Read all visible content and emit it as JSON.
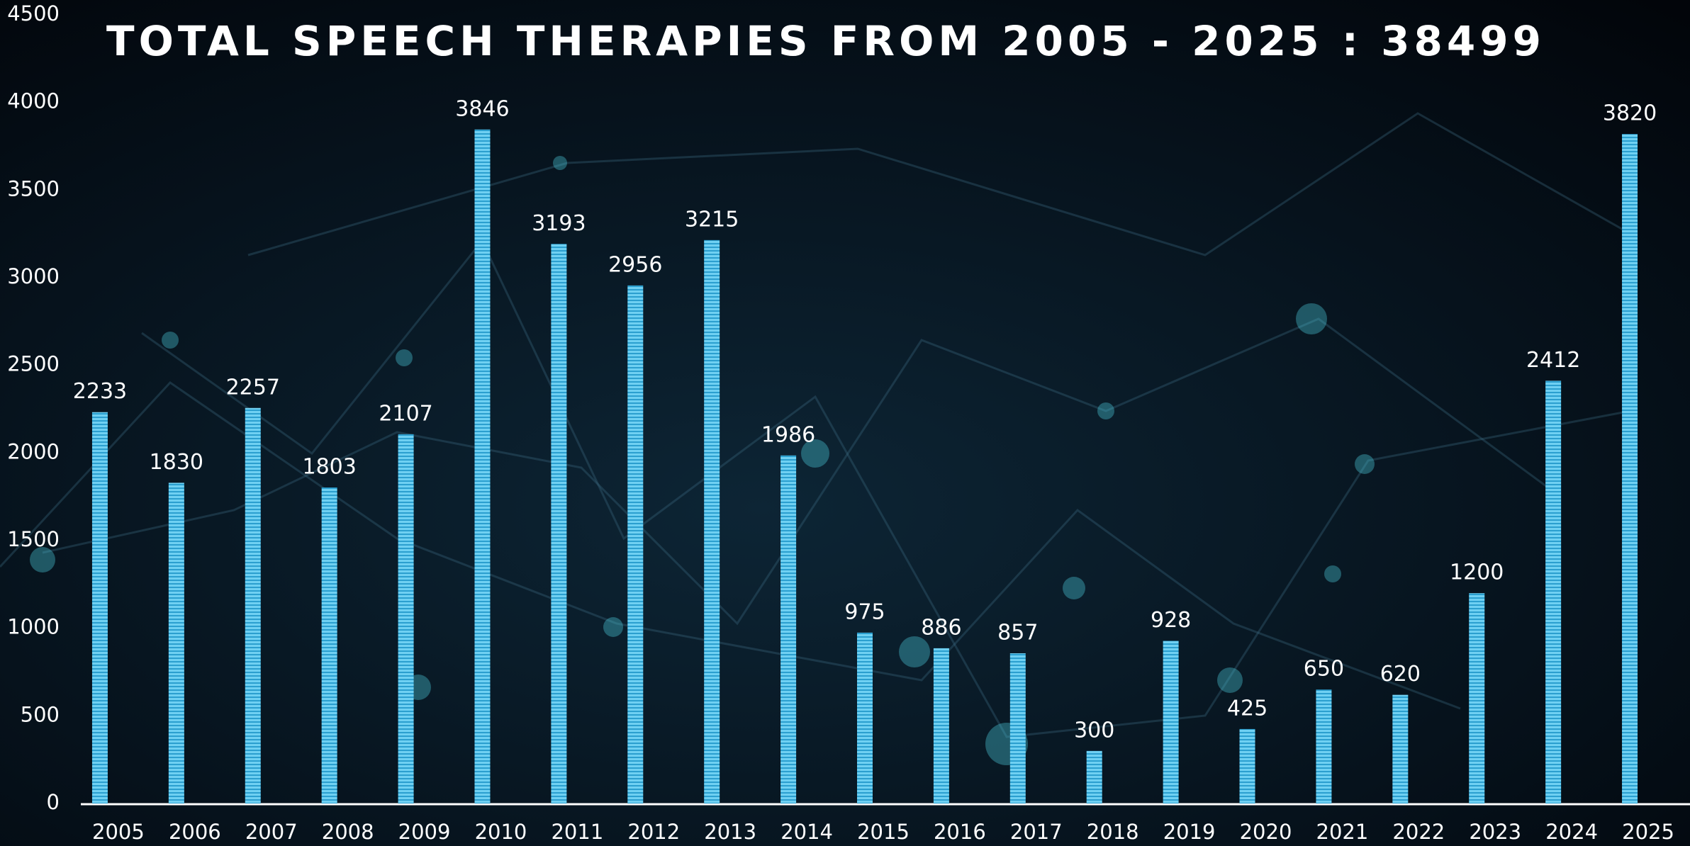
{
  "chart_data": {
    "type": "bar",
    "title": "TOTAL SPEECH THERAPIES FROM 2005 - 2025 : 38499",
    "categories": [
      "2005",
      "2006",
      "2007",
      "2008",
      "2009",
      "2010",
      "2011",
      "2012",
      "2013",
      "2014",
      "2015",
      "2016",
      "2017",
      "2018",
      "2019",
      "2020",
      "2021",
      "2022",
      "2023",
      "2024",
      "2025"
    ],
    "values": [
      2233,
      1830,
      2257,
      1803,
      2107,
      3846,
      3193,
      2956,
      3215,
      1986,
      975,
      886,
      857,
      300,
      928,
      425,
      650,
      620,
      1200,
      2412,
      3820
    ],
    "color": "#5cc6ee",
    "ylim": [
      0,
      4500
    ],
    "yticks": [
      0,
      500,
      1000,
      1500,
      2000,
      2500,
      3000,
      3500,
      4000,
      4500
    ],
    "grid": false
  }
}
